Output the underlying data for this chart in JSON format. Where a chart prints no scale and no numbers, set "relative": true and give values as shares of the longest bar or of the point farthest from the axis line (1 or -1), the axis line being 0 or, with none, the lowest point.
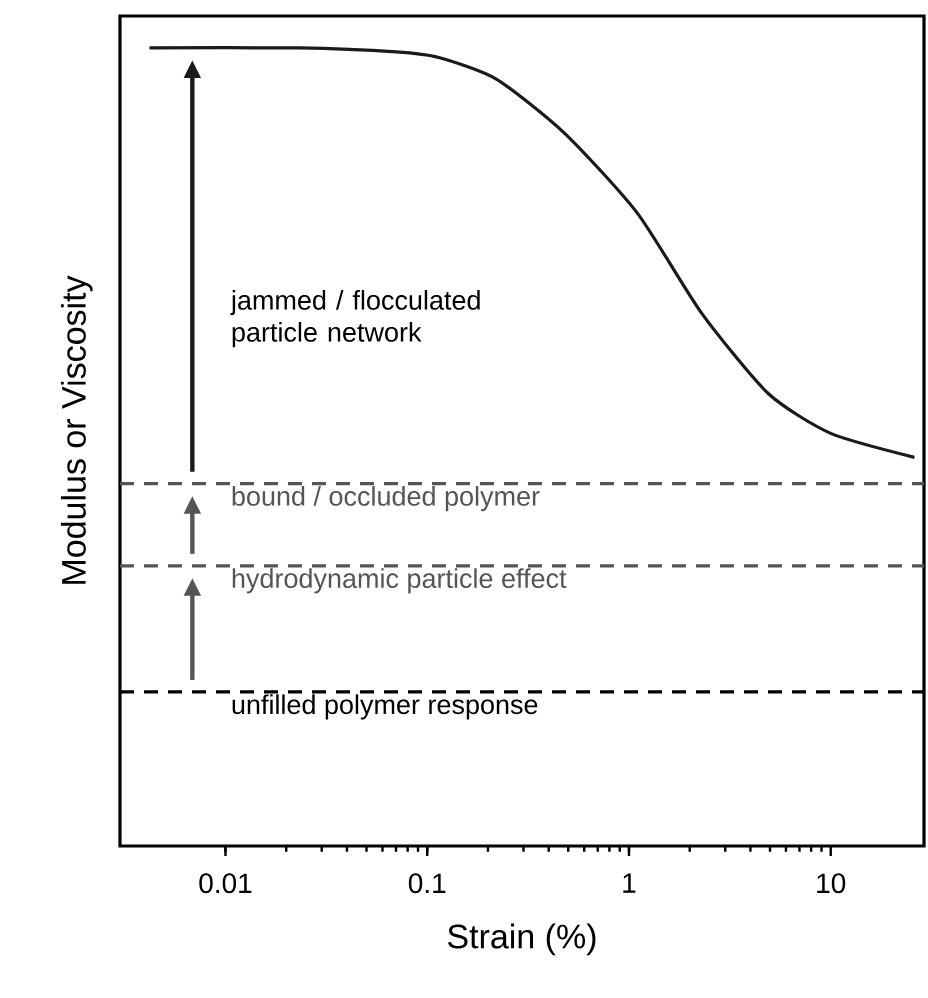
{
  "chart_data": {
    "type": "line",
    "xlabel": "Strain (%)",
    "ylabel": "Modulus or Viscosity",
    "log": "x",
    "relative": true,
    "xlim": [
      0.003,
      29
    ],
    "xticks": [
      0.01,
      0.1,
      1,
      10
    ],
    "x": [
      0.0042,
      0.023,
      0.07,
      0.114,
      0.22,
      0.48,
      1.1,
      2.3,
      4.9,
      10,
      26
    ],
    "series": [
      {
        "color": "#1a1a1a",
        "values": [
          1,
          1,
          0.995,
          0.988,
          0.961,
          0.893,
          0.793,
          0.667,
          0.567,
          0.517,
          0.487
        ]
      }
    ],
    "ref_lines": [
      {
        "axis": "y",
        "value": 0.193,
        "label": "unfilled polymer response",
        "color": "#000000",
        "line_style": "dashed"
      },
      {
        "axis": "y",
        "value": 0.351,
        "label": "hydrodynamic particle effect",
        "color": "#555555",
        "line_style": "dashed"
      },
      {
        "axis": "y",
        "value": 0.454,
        "label": "bound / occluded polymer",
        "color": "#555555",
        "line_style": "dashed"
      }
    ],
    "annotations": [
      "jammed / flocculated particle network"
    ]
  }
}
